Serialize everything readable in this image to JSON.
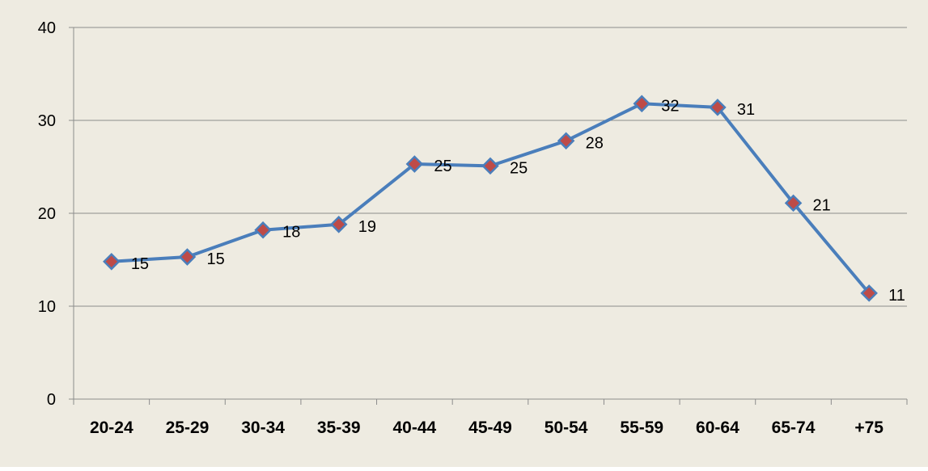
{
  "chart_data": {
    "type": "line",
    "title": "",
    "xlabel": "",
    "ylabel": "",
    "categories": [
      "20-24",
      "25-29",
      "30-34",
      "35-39",
      "40-44",
      "45-49",
      "50-54",
      "55-59",
      "60-64",
      "65-74",
      "+75"
    ],
    "series": [
      {
        "values": [
          14.8,
          15.3,
          18.2,
          18.8,
          25.3,
          25.1,
          27.8,
          31.8,
          31.4,
          21.1,
          11.4
        ],
        "data_labels": [
          "15",
          "15",
          "18",
          "19",
          "25",
          "25",
          "28",
          "32",
          "31",
          "21",
          "11"
        ]
      }
    ],
    "ylim": [
      0,
      40
    ],
    "yticks": [
      "0",
      "10",
      "20",
      "30",
      "40"
    ],
    "grid": "horizontal",
    "legend": "none",
    "colors": {
      "background": "#EEEBE1",
      "line": "#4A7EBB",
      "marker_fill": "#BE4B48",
      "marker_stroke": "#4A7EBB",
      "gridline": "#8C8C8C"
    }
  }
}
